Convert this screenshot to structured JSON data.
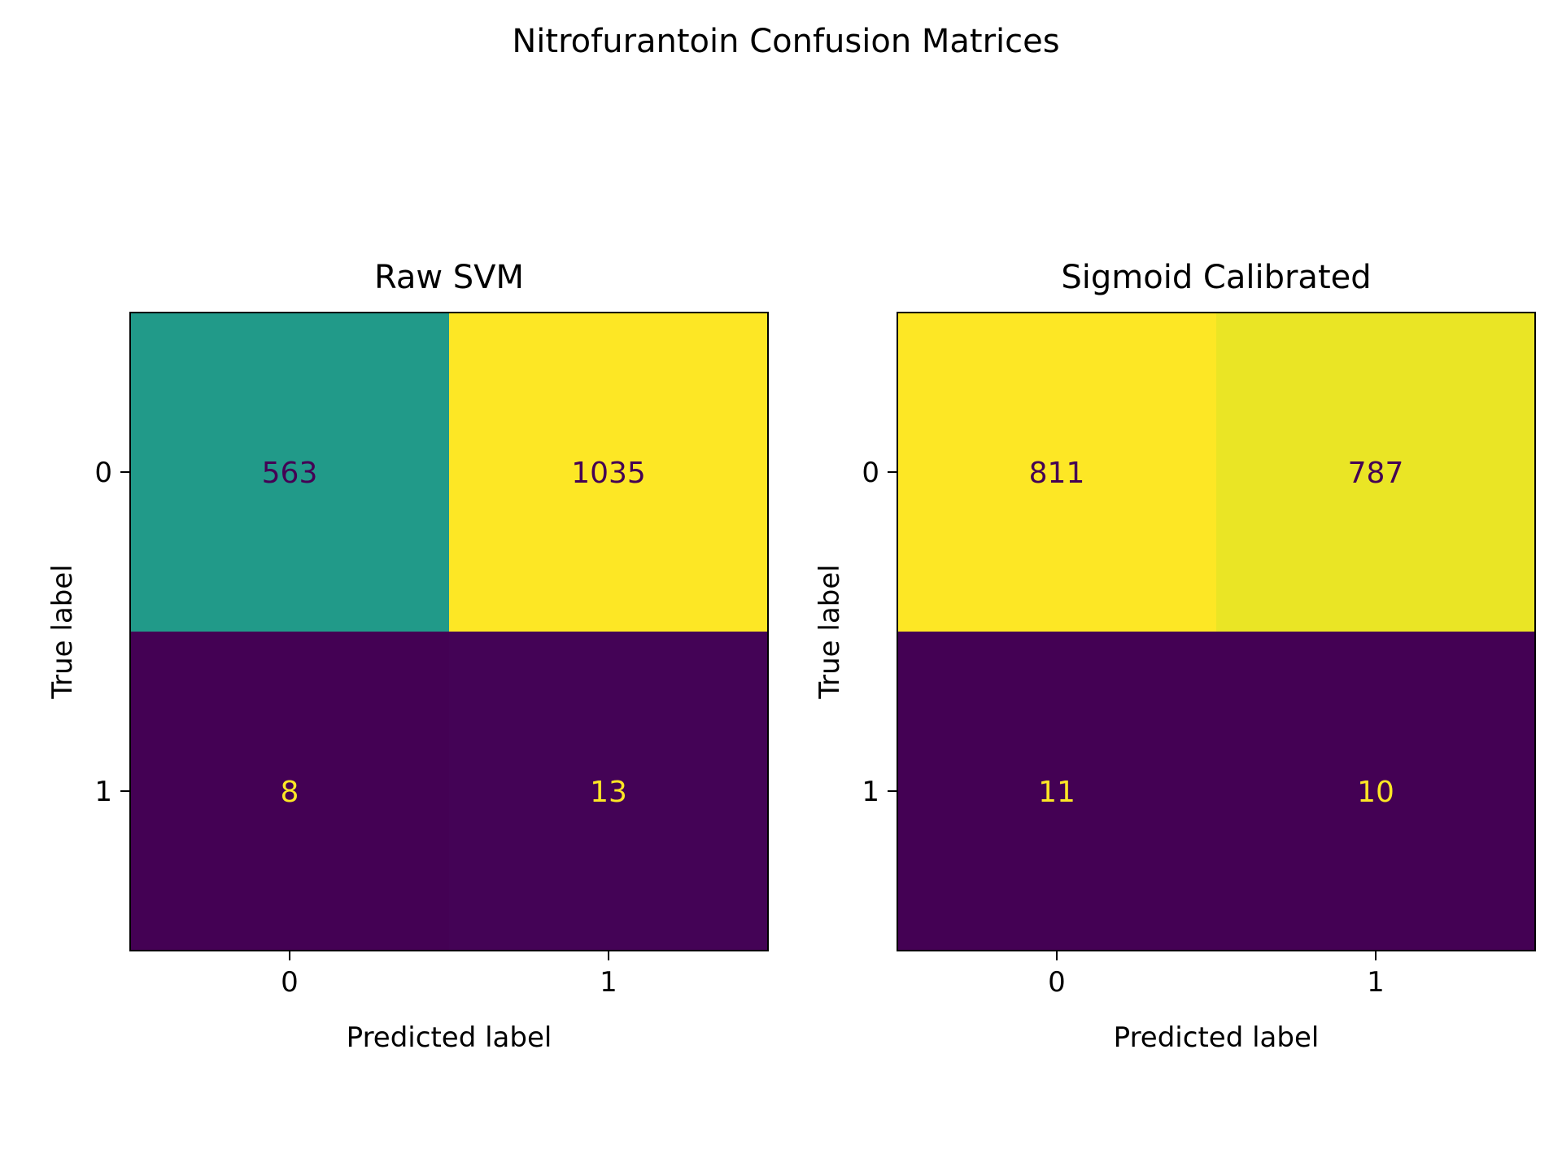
{
  "title": "Nitrofurantoin Confusion Matrices",
  "chart_data": [
    {
      "type": "heatmap",
      "title": "Raw SVM",
      "xlabel": "Predicted label",
      "ylabel": "True label",
      "x_categories": [
        "0",
        "1"
      ],
      "y_categories": [
        "0",
        "1"
      ],
      "values": [
        [
          563,
          1035
        ],
        [
          8,
          13
        ]
      ],
      "colormap": "viridis",
      "grid": false
    },
    {
      "type": "heatmap",
      "title": "Sigmoid Calibrated",
      "xlabel": "Predicted label",
      "ylabel": "True label",
      "x_categories": [
        "0",
        "1"
      ],
      "y_categories": [
        "0",
        "1"
      ],
      "values": [
        [
          811,
          787
        ],
        [
          11,
          10
        ]
      ],
      "colormap": "viridis",
      "grid": false
    }
  ],
  "colors": {
    "viridis_low": "#440154",
    "viridis_mid": "#21918c",
    "viridis_high": "#fde725",
    "text_on_dark": "#fde725",
    "text_on_light": "#440154"
  }
}
